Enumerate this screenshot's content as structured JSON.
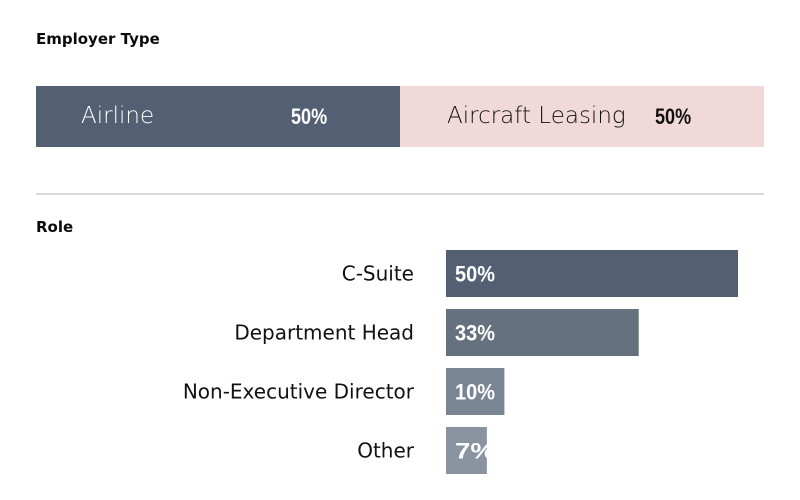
{
  "chart_data": [
    {
      "type": "bar",
      "title": "Employer Type",
      "categories": [
        "Airline",
        "Aircraft Leasing"
      ],
      "values": [
        50,
        50
      ],
      "value_labels": [
        "50%",
        "50%"
      ],
      "colors": [
        "#536073",
        "#f1d9d9"
      ],
      "text_colors": [
        "#ffffff",
        "#111111"
      ],
      "orientation": "stacked-horizontal"
    },
    {
      "type": "bar",
      "title": "Role",
      "categories": [
        "C-Suite",
        "Department Head",
        "Non-Executive Director",
        "Other"
      ],
      "values": [
        50,
        33,
        10,
        7
      ],
      "value_labels": [
        "50%",
        "33%",
        "10%",
        "7%"
      ],
      "colors": [
        "#536073",
        "#66717f",
        "#7a8593",
        "#8a94a1"
      ],
      "orientation": "horizontal",
      "xlim": [
        0,
        55
      ]
    }
  ]
}
